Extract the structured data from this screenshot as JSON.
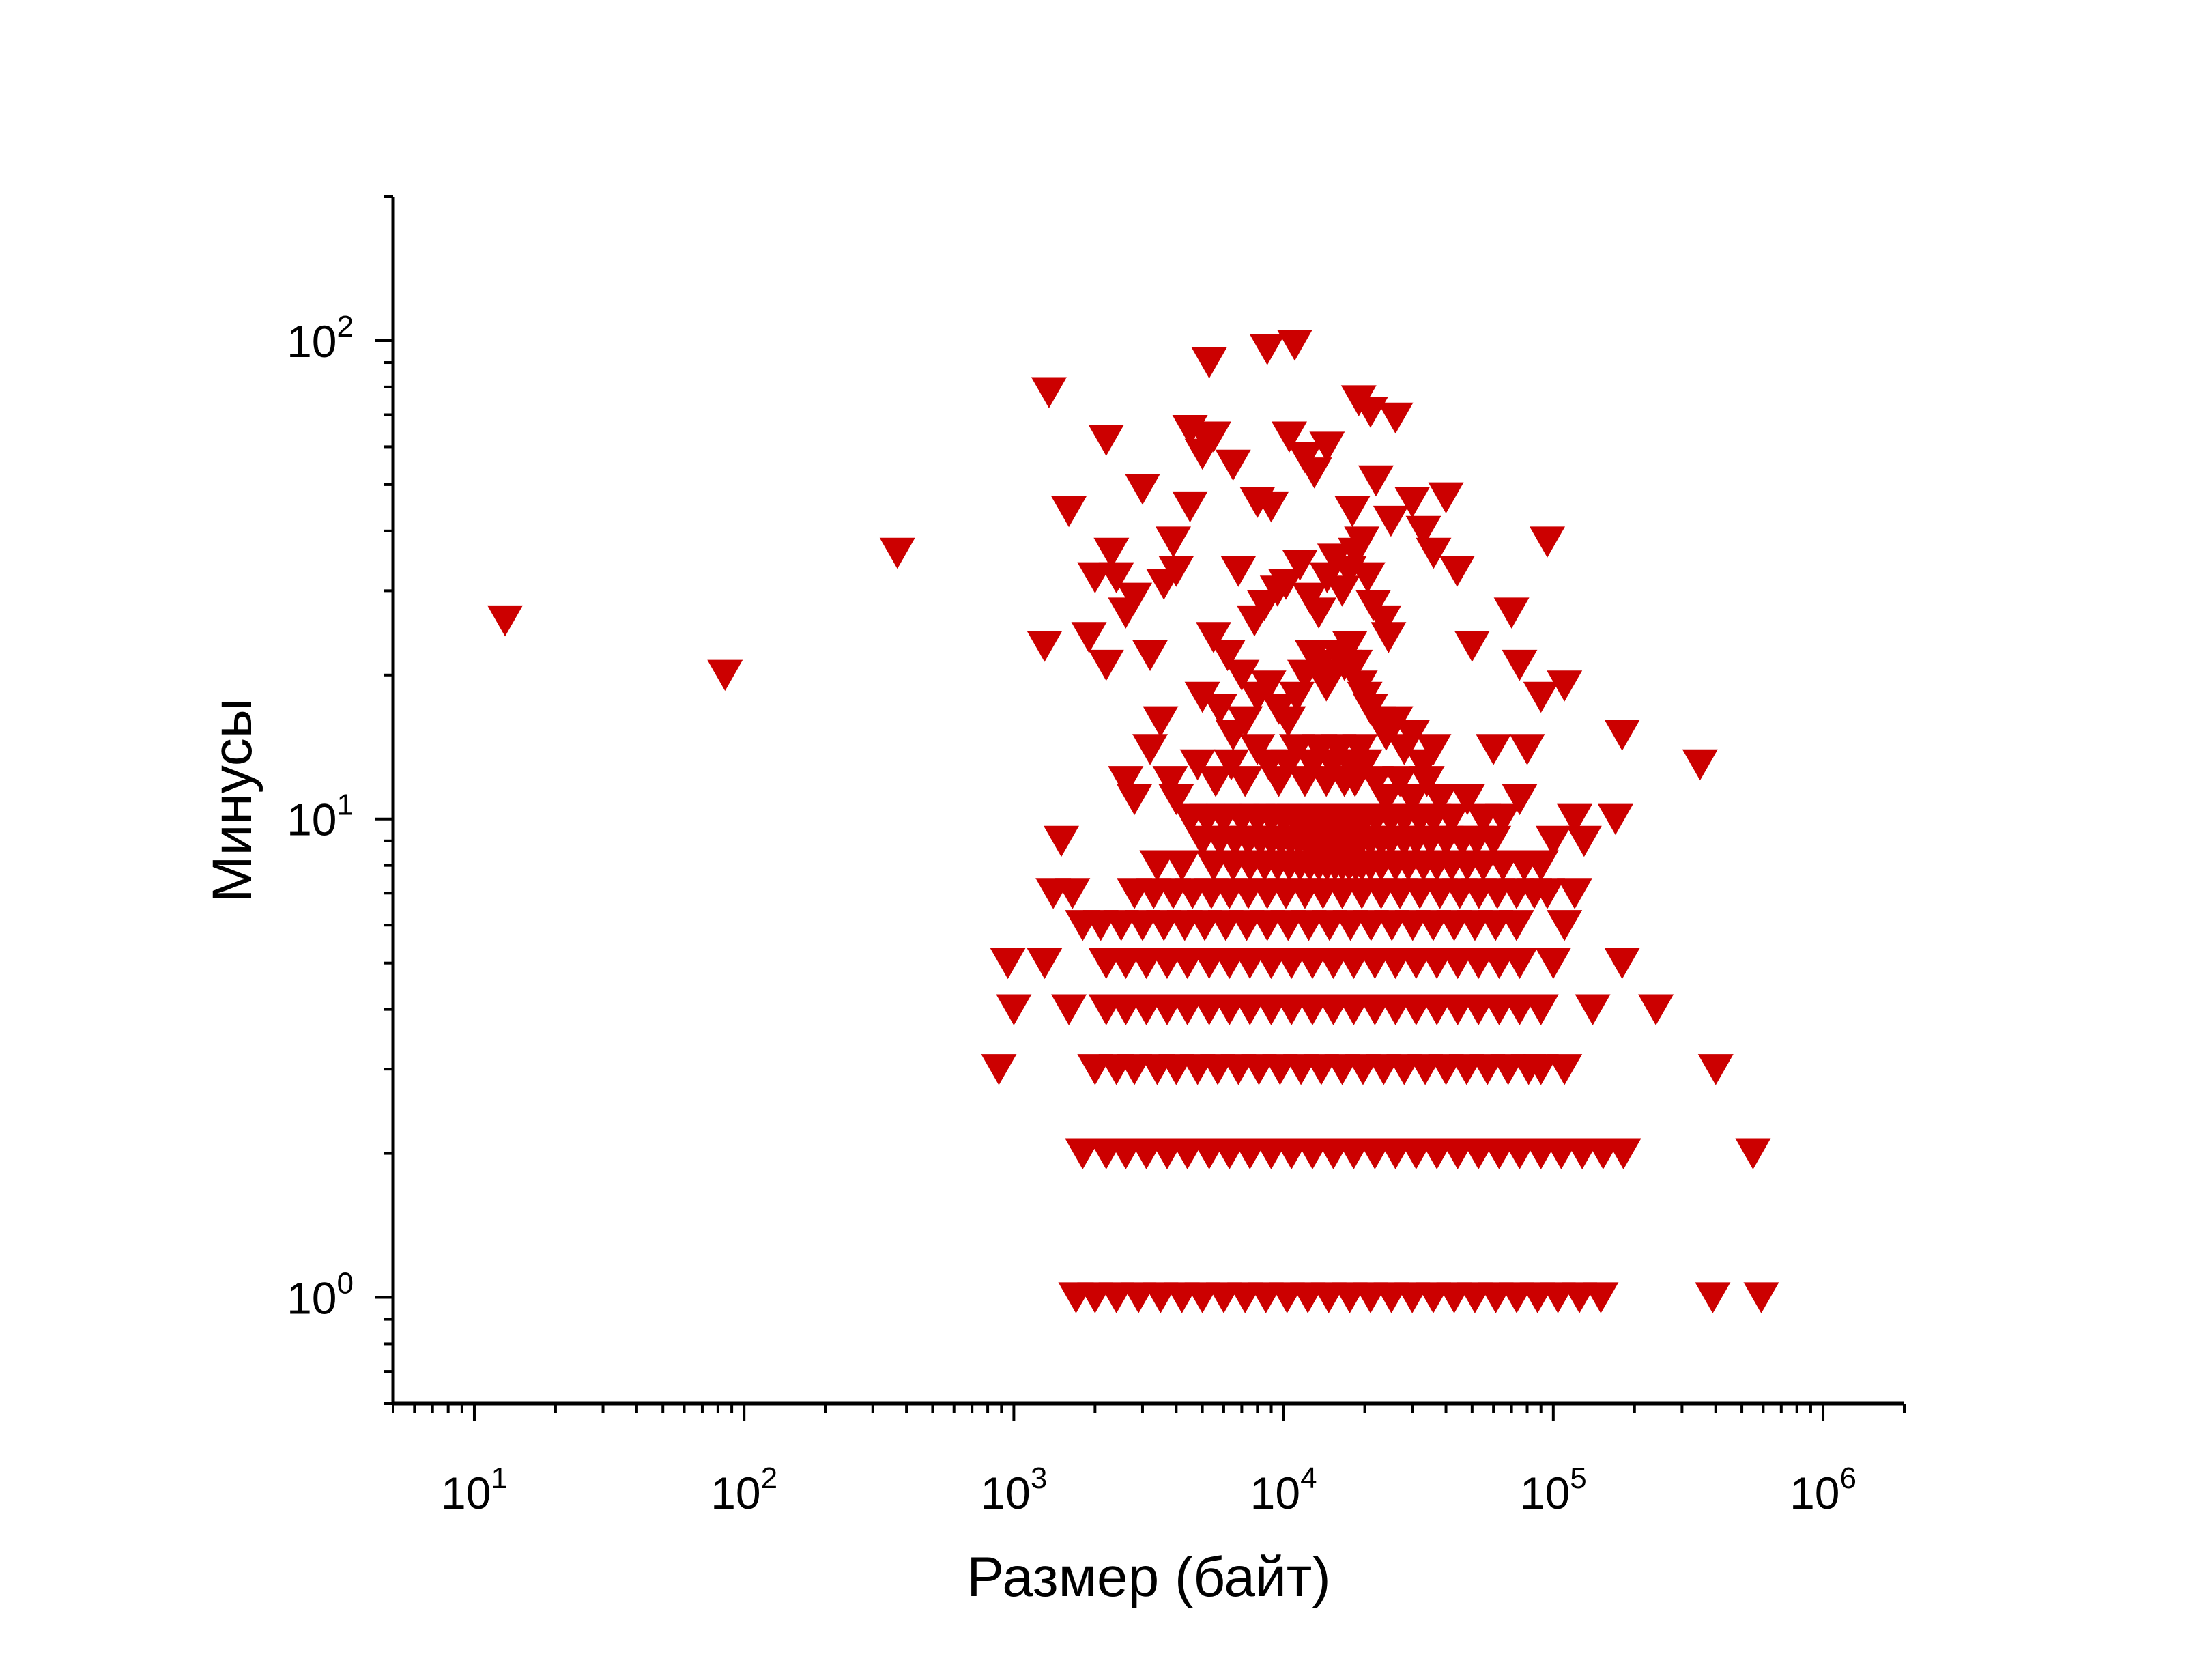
{
  "chart_data": {
    "type": "scatter",
    "xlabel": "Размер (байт)",
    "ylabel": "Минусы",
    "x_scale": "log",
    "y_scale": "log",
    "xlim": [
      5,
      2000000
    ],
    "ylim": [
      0.6,
      200
    ],
    "x_ticks": [
      {
        "value": 10,
        "base": "10",
        "exp": "1"
      },
      {
        "value": 100,
        "base": "10",
        "exp": "2"
      },
      {
        "value": 1000,
        "base": "10",
        "exp": "3"
      },
      {
        "value": 10000,
        "base": "10",
        "exp": "4"
      },
      {
        "value": 100000,
        "base": "10",
        "exp": "5"
      },
      {
        "value": 1000000,
        "base": "10",
        "exp": "6"
      }
    ],
    "y_ticks": [
      {
        "value": 1,
        "base": "10",
        "exp": "0"
      },
      {
        "value": 10,
        "base": "10",
        "exp": "1"
      },
      {
        "value": 100,
        "base": "10",
        "exp": "2"
      }
    ],
    "marker": "triangle-down",
    "marker_color": "#cc0000",
    "grid": false,
    "legend": "none",
    "points": [
      [
        13,
        26
      ],
      [
        85,
        20
      ],
      [
        370,
        36
      ],
      [
        1350,
        78
      ],
      [
        1300,
        23
      ],
      [
        1600,
        44
      ],
      [
        1500,
        9
      ],
      [
        1400,
        7
      ],
      [
        1650,
        7
      ],
      [
        950,
        5
      ],
      [
        1300,
        5
      ],
      [
        1000,
        4
      ],
      [
        1600,
        4
      ],
      [
        880,
        3
      ],
      [
        2200,
        62
      ],
      [
        2300,
        36
      ],
      [
        2000,
        32
      ],
      [
        2400,
        32
      ],
      [
        2800,
        29
      ],
      [
        3000,
        49
      ],
      [
        2600,
        27
      ],
      [
        1900,
        24
      ],
      [
        2200,
        21
      ],
      [
        3200,
        22
      ],
      [
        3500,
        16
      ],
      [
        3200,
        14
      ],
      [
        2600,
        12
      ],
      [
        2800,
        11
      ],
      [
        3800,
        12
      ],
      [
        4000,
        11
      ],
      [
        3400,
        8
      ],
      [
        4200,
        8
      ],
      [
        3600,
        31
      ],
      [
        4000,
        33
      ],
      [
        4500,
        45
      ],
      [
        4500,
        65
      ],
      [
        5200,
        62
      ],
      [
        5500,
        63
      ],
      [
        5000,
        58
      ],
      [
        5300,
        90
      ],
      [
        3900,
        38
      ],
      [
        6800,
        33
      ],
      [
        6500,
        55
      ],
      [
        8700,
        96
      ],
      [
        11000,
        98
      ],
      [
        10500,
        63
      ],
      [
        12000,
        57
      ],
      [
        14500,
        60
      ],
      [
        13000,
        53
      ],
      [
        19000,
        75
      ],
      [
        21000,
        71
      ],
      [
        26000,
        69
      ],
      [
        22000,
        51
      ],
      [
        18000,
        44
      ],
      [
        8000,
        46
      ],
      [
        9000,
        45
      ],
      [
        30000,
        46
      ],
      [
        40000,
        47
      ],
      [
        25000,
        42
      ],
      [
        33000,
        40
      ],
      [
        36000,
        36
      ],
      [
        44000,
        33
      ],
      [
        70000,
        27
      ],
      [
        95000,
        38
      ],
      [
        50000,
        23
      ],
      [
        90000,
        18
      ],
      [
        110000,
        19
      ],
      [
        80000,
        14
      ],
      [
        60000,
        14
      ],
      [
        75000,
        21
      ],
      [
        120000,
        10
      ],
      [
        180000,
        15
      ],
      [
        350000,
        13
      ],
      [
        170000,
        10
      ],
      [
        100000,
        9
      ],
      [
        130000,
        9
      ],
      [
        95000,
        7
      ],
      [
        120000,
        7
      ],
      [
        110000,
        6
      ],
      [
        100000,
        5
      ],
      [
        180000,
        5
      ],
      [
        140000,
        4
      ],
      [
        240000,
        4
      ],
      [
        110000,
        3
      ],
      [
        90000,
        3
      ],
      [
        400000,
        3
      ],
      [
        5500,
        24
      ],
      [
        6200,
        22
      ],
      [
        7000,
        20
      ],
      [
        7800,
        26
      ],
      [
        8500,
        28
      ],
      [
        9500,
        30
      ],
      [
        10200,
        31
      ],
      [
        11500,
        34
      ],
      [
        12500,
        29
      ],
      [
        13500,
        27
      ],
      [
        14500,
        32
      ],
      [
        15500,
        35
      ],
      [
        16500,
        30
      ],
      [
        17500,
        33
      ],
      [
        18500,
        36
      ],
      [
        19500,
        38
      ],
      [
        20500,
        32
      ],
      [
        21500,
        28
      ],
      [
        23500,
        26
      ],
      [
        24500,
        24
      ],
      [
        5000,
        18
      ],
      [
        5800,
        17
      ],
      [
        6500,
        15
      ],
      [
        7200,
        16
      ],
      [
        8000,
        18
      ],
      [
        8800,
        19
      ],
      [
        9600,
        17
      ],
      [
        10400,
        16
      ],
      [
        11200,
        18
      ],
      [
        12000,
        20
      ],
      [
        12800,
        22
      ],
      [
        13600,
        21
      ],
      [
        14400,
        19
      ],
      [
        15200,
        20
      ],
      [
        16000,
        22
      ],
      [
        16800,
        21
      ],
      [
        17600,
        23
      ],
      [
        18400,
        21
      ],
      [
        19200,
        19
      ],
      [
        20000,
        18
      ],
      [
        21000,
        17
      ],
      [
        22500,
        16
      ],
      [
        24000,
        15
      ],
      [
        26000,
        16
      ],
      [
        28000,
        14
      ],
      [
        30000,
        15
      ],
      [
        33000,
        13
      ],
      [
        36000,
        14
      ],
      [
        4800,
        13
      ],
      [
        5600,
        12
      ],
      [
        6400,
        13
      ],
      [
        7200,
        12
      ],
      [
        8000,
        14
      ],
      [
        8800,
        13
      ],
      [
        9600,
        12
      ],
      [
        10400,
        13
      ],
      [
        11200,
        14
      ],
      [
        12000,
        12
      ],
      [
        12800,
        13
      ],
      [
        13600,
        14
      ],
      [
        14400,
        12
      ],
      [
        15200,
        13
      ],
      [
        16000,
        14
      ],
      [
        16800,
        12
      ],
      [
        17600,
        13
      ],
      [
        18400,
        12
      ],
      [
        19200,
        14
      ],
      [
        20000,
        13
      ],
      [
        22000,
        12
      ],
      [
        24000,
        11
      ],
      [
        27000,
        12
      ],
      [
        30000,
        11
      ],
      [
        34000,
        12
      ],
      [
        38000,
        11
      ],
      [
        42000,
        10
      ],
      [
        48000,
        11
      ],
      [
        4500,
        10
      ],
      [
        5200,
        10
      ],
      [
        6000,
        10
      ],
      [
        7000,
        10
      ],
      [
        8000,
        10
      ],
      [
        9000,
        10
      ],
      [
        10000,
        10
      ],
      [
        11000,
        10
      ],
      [
        12000,
        10
      ],
      [
        13000,
        10
      ],
      [
        14000,
        10
      ],
      [
        15000,
        10
      ],
      [
        16000,
        10
      ],
      [
        17000,
        10
      ],
      [
        18000,
        10
      ],
      [
        19000,
        10
      ],
      [
        20000,
        10
      ],
      [
        22000,
        10
      ],
      [
        25000,
        10
      ],
      [
        28000,
        10
      ],
      [
        32000,
        10
      ],
      [
        36000,
        10
      ],
      [
        55000,
        10
      ],
      [
        65000,
        10
      ],
      [
        75000,
        11
      ],
      [
        5000,
        9
      ],
      [
        5800,
        9
      ],
      [
        6600,
        9
      ],
      [
        7400,
        9
      ],
      [
        8200,
        9
      ],
      [
        9000,
        9
      ],
      [
        9800,
        9
      ],
      [
        10600,
        9
      ],
      [
        11400,
        9
      ],
      [
        12200,
        9
      ],
      [
        13000,
        9
      ],
      [
        13800,
        9
      ],
      [
        14600,
        9
      ],
      [
        15400,
        9
      ],
      [
        16200,
        9
      ],
      [
        17000,
        9
      ],
      [
        17800,
        9
      ],
      [
        18600,
        9
      ],
      [
        19400,
        9
      ],
      [
        21000,
        9
      ],
      [
        23000,
        9
      ],
      [
        25000,
        9
      ],
      [
        28000,
        9
      ],
      [
        31000,
        9
      ],
      [
        35000,
        9
      ],
      [
        40000,
        9
      ],
      [
        46000,
        9
      ],
      [
        52000,
        9
      ],
      [
        60000,
        9
      ],
      [
        5500,
        8
      ],
      [
        6500,
        8
      ],
      [
        7500,
        8
      ],
      [
        8500,
        8
      ],
      [
        9500,
        8
      ],
      [
        10500,
        8
      ],
      [
        11500,
        8
      ],
      [
        12500,
        8
      ],
      [
        13500,
        8
      ],
      [
        14500,
        8
      ],
      [
        15500,
        8
      ],
      [
        16500,
        8
      ],
      [
        17500,
        8
      ],
      [
        18500,
        8
      ],
      [
        19500,
        8
      ],
      [
        21000,
        8
      ],
      [
        23000,
        8
      ],
      [
        26000,
        8
      ],
      [
        29000,
        8
      ],
      [
        33000,
        8
      ],
      [
        37000,
        8
      ],
      [
        42000,
        8
      ],
      [
        48000,
        8
      ],
      [
        55000,
        8
      ],
      [
        65000,
        8
      ],
      [
        78000,
        8
      ],
      [
        90000,
        8
      ],
      [
        2800,
        7
      ],
      [
        3300,
        7
      ],
      [
        3900,
        7
      ],
      [
        4600,
        7
      ],
      [
        5400,
        7
      ],
      [
        6300,
        7
      ],
      [
        7400,
        7
      ],
      [
        8700,
        7
      ],
      [
        10200,
        7
      ],
      [
        12000,
        7
      ],
      [
        14000,
        7
      ],
      [
        16500,
        7
      ],
      [
        19500,
        7
      ],
      [
        23000,
        7
      ],
      [
        27000,
        7
      ],
      [
        32000,
        7
      ],
      [
        38000,
        7
      ],
      [
        45000,
        7
      ],
      [
        53000,
        7
      ],
      [
        62000,
        7
      ],
      [
        73000,
        7
      ],
      [
        85000,
        7
      ],
      [
        1800,
        6
      ],
      [
        2100,
        6
      ],
      [
        2500,
        6
      ],
      [
        3000,
        6
      ],
      [
        3600,
        6
      ],
      [
        4300,
        6
      ],
      [
        5100,
        6
      ],
      [
        6100,
        6
      ],
      [
        7300,
        6
      ],
      [
        8700,
        6
      ],
      [
        10400,
        6
      ],
      [
        12400,
        6
      ],
      [
        14800,
        6
      ],
      [
        17700,
        6
      ],
      [
        21100,
        6
      ],
      [
        25200,
        6
      ],
      [
        30100,
        6
      ],
      [
        35900,
        6
      ],
      [
        42900,
        6
      ],
      [
        51200,
        6
      ],
      [
        61100,
        6
      ],
      [
        73000,
        6
      ],
      [
        2200,
        5
      ],
      [
        2600,
        5
      ],
      [
        3100,
        5
      ],
      [
        3700,
        5
      ],
      [
        4400,
        5
      ],
      [
        5300,
        5
      ],
      [
        6300,
        5
      ],
      [
        7500,
        5
      ],
      [
        9000,
        5
      ],
      [
        10700,
        5
      ],
      [
        12800,
        5
      ],
      [
        15300,
        5
      ],
      [
        18200,
        5
      ],
      [
        21800,
        5
      ],
      [
        26000,
        5
      ],
      [
        31000,
        5
      ],
      [
        37000,
        5
      ],
      [
        44200,
        5
      ],
      [
        52800,
        5
      ],
      [
        63000,
        5
      ],
      [
        75000,
        5
      ],
      [
        2200,
        4
      ],
      [
        2600,
        4
      ],
      [
        3100,
        4
      ],
      [
        3700,
        4
      ],
      [
        4400,
        4
      ],
      [
        5300,
        4
      ],
      [
        6300,
        4
      ],
      [
        7500,
        4
      ],
      [
        9000,
        4
      ],
      [
        10700,
        4
      ],
      [
        12800,
        4
      ],
      [
        15300,
        4
      ],
      [
        18200,
        4
      ],
      [
        21800,
        4
      ],
      [
        26000,
        4
      ],
      [
        31000,
        4
      ],
      [
        37000,
        4
      ],
      [
        44200,
        4
      ],
      [
        52800,
        4
      ],
      [
        63000,
        4
      ],
      [
        75000,
        4
      ],
      [
        90000,
        4
      ],
      [
        2000,
        3
      ],
      [
        2400,
        3
      ],
      [
        2800,
        3
      ],
      [
        3400,
        3
      ],
      [
        4000,
        3
      ],
      [
        4800,
        3
      ],
      [
        5700,
        3
      ],
      [
        6800,
        3
      ],
      [
        8100,
        3
      ],
      [
        9700,
        3
      ],
      [
        11600,
        3
      ],
      [
        13800,
        3
      ],
      [
        16500,
        3
      ],
      [
        19700,
        3
      ],
      [
        23500,
        3
      ],
      [
        28000,
        3
      ],
      [
        33500,
        3
      ],
      [
        40000,
        3
      ],
      [
        47700,
        3
      ],
      [
        57000,
        3
      ],
      [
        68000,
        3
      ],
      [
        81000,
        3
      ],
      [
        1800,
        2
      ],
      [
        2200,
        2
      ],
      [
        2600,
        2
      ],
      [
        3100,
        2
      ],
      [
        3700,
        2
      ],
      [
        4400,
        2
      ],
      [
        5300,
        2
      ],
      [
        6300,
        2
      ],
      [
        7500,
        2
      ],
      [
        9000,
        2
      ],
      [
        10700,
        2
      ],
      [
        12800,
        2
      ],
      [
        15300,
        2
      ],
      [
        18200,
        2
      ],
      [
        21800,
        2
      ],
      [
        26000,
        2
      ],
      [
        31000,
        2
      ],
      [
        37000,
        2
      ],
      [
        44200,
        2
      ],
      [
        52800,
        2
      ],
      [
        63000,
        2
      ],
      [
        75000,
        2
      ],
      [
        90000,
        2
      ],
      [
        107000,
        2
      ],
      [
        128000,
        2
      ],
      [
        153000,
        2
      ],
      [
        182000,
        2
      ],
      [
        550000,
        2
      ],
      [
        1700,
        1
      ],
      [
        2000,
        1
      ],
      [
        2400,
        1
      ],
      [
        2900,
        1
      ],
      [
        3500,
        1
      ],
      [
        4200,
        1
      ],
      [
        5000,
        1
      ],
      [
        6000,
        1
      ],
      [
        7200,
        1
      ],
      [
        8600,
        1
      ],
      [
        10300,
        1
      ],
      [
        12300,
        1
      ],
      [
        14700,
        1
      ],
      [
        17600,
        1
      ],
      [
        21000,
        1
      ],
      [
        25100,
        1
      ],
      [
        30000,
        1
      ],
      [
        35900,
        1
      ],
      [
        42900,
        1
      ],
      [
        51200,
        1
      ],
      [
        61200,
        1
      ],
      [
        73100,
        1
      ],
      [
        87400,
        1
      ],
      [
        104000,
        1
      ],
      [
        125000,
        1
      ],
      [
        150000,
        1
      ],
      [
        390000,
        1
      ],
      [
        590000,
        1
      ]
    ]
  }
}
